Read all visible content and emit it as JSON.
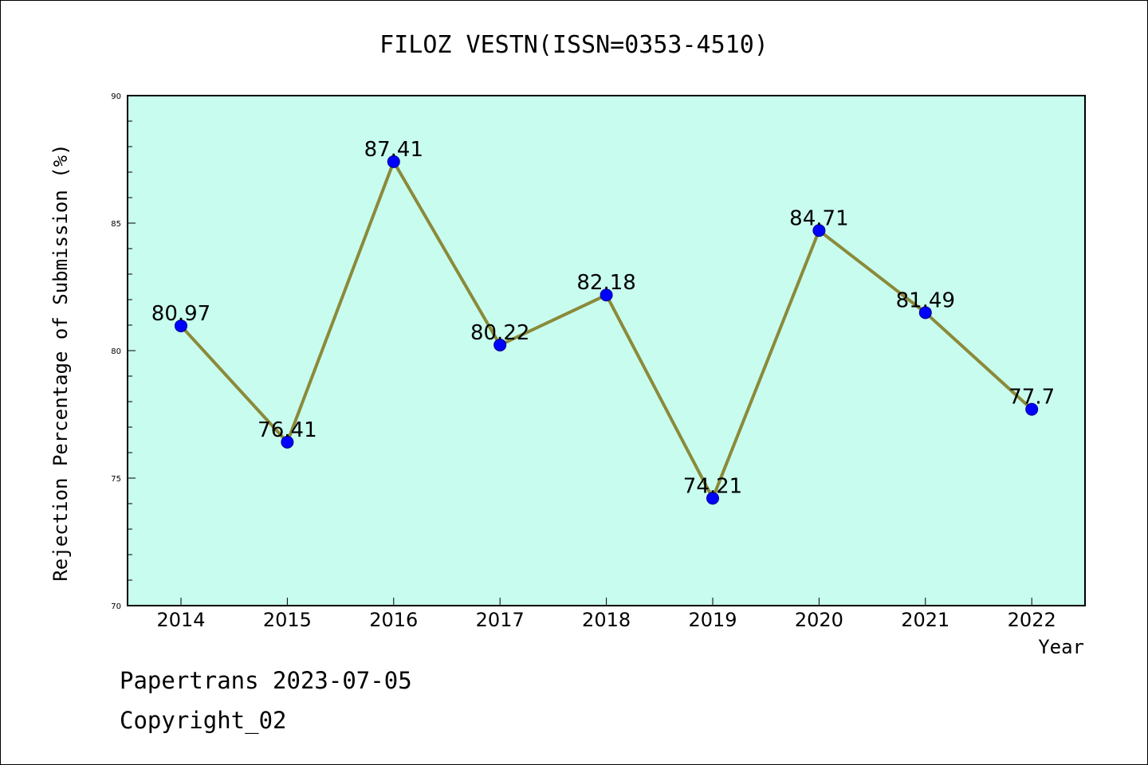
{
  "chart_data": {
    "type": "line",
    "title": "FILOZ VESTN(ISSN=0353-4510)",
    "xlabel": "Year",
    "ylabel": "Rejection Percentage of Submission (%)",
    "categories": [
      "2014",
      "2015",
      "2016",
      "2017",
      "2018",
      "2019",
      "2020",
      "2021",
      "2022"
    ],
    "values": [
      80.97,
      76.41,
      87.41,
      80.22,
      82.18,
      74.21,
      84.71,
      81.49,
      77.7
    ],
    "data_labels": [
      "80.97",
      "76.41",
      "87.41",
      "80.22",
      "82.18",
      "74.21",
      "84.71",
      "81.49",
      "77.7"
    ],
    "ylim": [
      70,
      90
    ],
    "yticks": [
      70,
      75,
      80,
      85,
      90
    ],
    "ytick_labels": [
      "70",
      "75",
      "80",
      "85",
      "90"
    ],
    "grid": false,
    "colors": {
      "plot_background": "#c8fcee",
      "line": "#8b8a3a",
      "marker": "#0000ff"
    }
  },
  "footer": {
    "line1": "Papertrans 2023-07-05",
    "line2": "Copyright_02"
  }
}
